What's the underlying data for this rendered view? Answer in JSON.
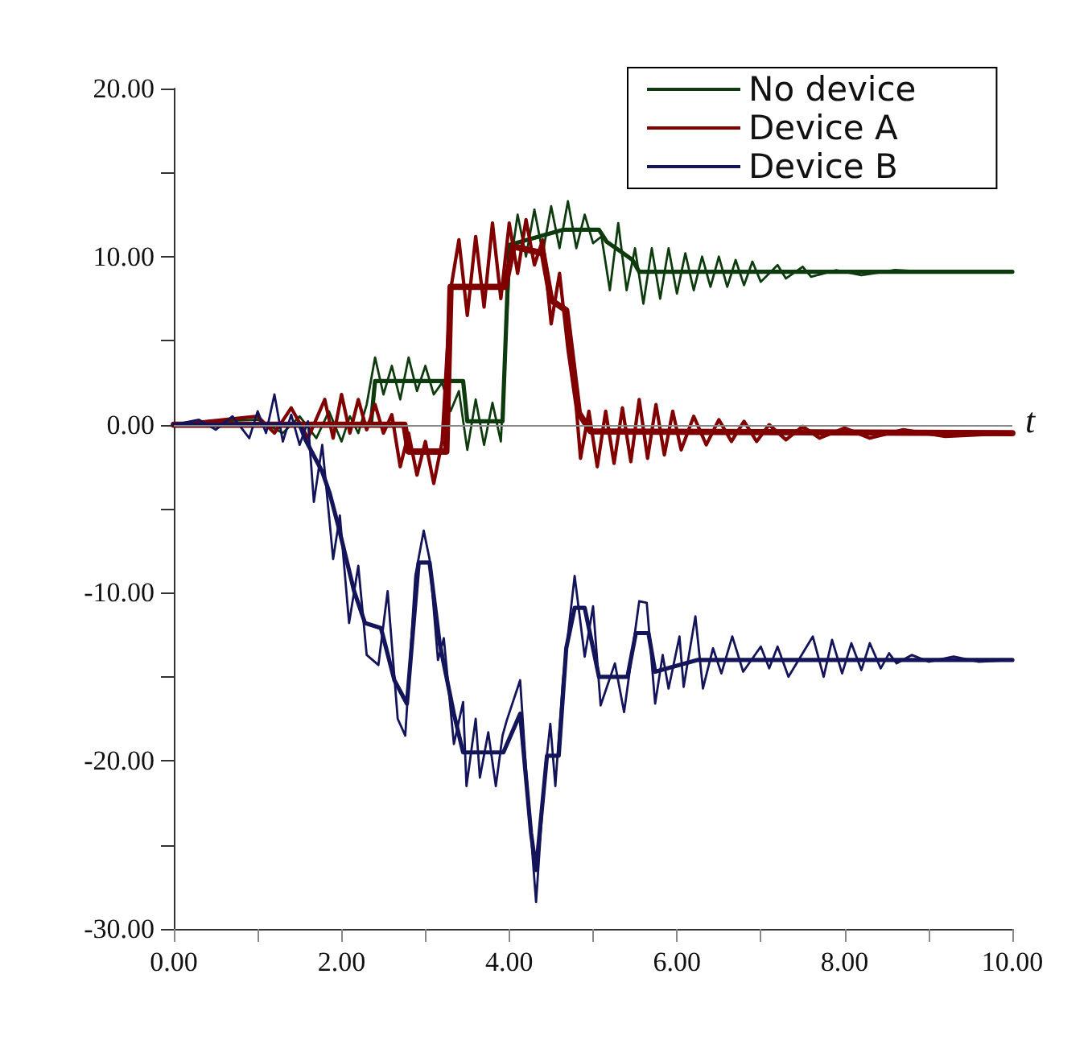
{
  "chart_data": {
    "type": "line",
    "xlabel": "t",
    "xlim": [
      0,
      10
    ],
    "ylim": [
      -30,
      20
    ],
    "xticks": [
      {
        "value": 0,
        "label": "0.00"
      },
      {
        "value": 1,
        "label": null
      },
      {
        "value": 2,
        "label": "2.00"
      },
      {
        "value": 3,
        "label": null
      },
      {
        "value": 4,
        "label": "4.00"
      },
      {
        "value": 5,
        "label": null
      },
      {
        "value": 6,
        "label": "6.00"
      },
      {
        "value": 7,
        "label": null
      },
      {
        "value": 8,
        "label": "8.00"
      },
      {
        "value": 9,
        "label": null
      },
      {
        "value": 10,
        "label": "10.00"
      }
    ],
    "yticks": [
      {
        "value": -30,
        "label": "-30.00"
      },
      {
        "value": -25,
        "label": null
      },
      {
        "value": -20,
        "label": "-20.00"
      },
      {
        "value": -15,
        "label": null
      },
      {
        "value": -10,
        "label": "-10.00"
      },
      {
        "value": -5,
        "label": null
      },
      {
        "value": 0,
        "label": "0.00"
      },
      {
        "value": 5,
        "label": null
      },
      {
        "value": 10,
        "label": "10.00"
      },
      {
        "value": 15,
        "label": null
      },
      {
        "value": 20,
        "label": "20.00"
      }
    ],
    "grid": false,
    "legend": "top right",
    "marker": "none",
    "ref_lines": [
      {
        "axis": "y",
        "value": 0,
        "color": "#888888"
      }
    ],
    "series": [
      {
        "name": "No device",
        "color": "#0d3b0d",
        "x": [
          0,
          0.5,
          1.0,
          1.3,
          1.5,
          1.7,
          1.85,
          2.0,
          2.1,
          2.2,
          2.3,
          2.4,
          2.5,
          2.6,
          2.7,
          2.8,
          2.9,
          3.0,
          3.1,
          3.2,
          3.3,
          3.4,
          3.5,
          3.6,
          3.7,
          3.8,
          3.9,
          4.0,
          4.1,
          4.2,
          4.3,
          4.4,
          4.5,
          4.6,
          4.7,
          4.8,
          4.9,
          5.0,
          5.1,
          5.2,
          5.3,
          5.4,
          5.5,
          5.6,
          5.7,
          5.8,
          5.9,
          6.0,
          6.1,
          6.2,
          6.3,
          6.4,
          6.5,
          6.6,
          6.7,
          6.8,
          6.9,
          7.0,
          7.2,
          7.3,
          7.5,
          7.6,
          7.9,
          8.2,
          8.6,
          9.0,
          10.0
        ],
        "values": [
          0,
          0.2,
          0.3,
          -0.5,
          0.5,
          -0.8,
          0.8,
          -1.0,
          0.5,
          -0.5,
          1.2,
          4.0,
          1.8,
          3.5,
          1.5,
          4.0,
          2.0,
          3.5,
          1.8,
          2.5,
          0.8,
          2.0,
          -1.5,
          1.5,
          -1.2,
          1.3,
          -1.0,
          9.0,
          12.5,
          10.0,
          12.8,
          10.2,
          13.0,
          10.5,
          13.3,
          10.5,
          12.5,
          10.8,
          11.2,
          8.0,
          12.0,
          8.0,
          10.5,
          7.2,
          10.5,
          7.5,
          10.5,
          7.8,
          10.2,
          8.0,
          10.0,
          8.2,
          10.0,
          8.2,
          9.8,
          8.3,
          9.7,
          8.5,
          9.5,
          8.7,
          9.4,
          8.8,
          9.2,
          8.9,
          9.2,
          9.1,
          9.1
        ]
      },
      {
        "color": "#0d3b0d",
        "x": [
          0,
          2.35,
          2.4,
          3.45,
          3.5,
          3.92,
          4.0,
          4.64,
          5.07,
          5.16,
          5.47,
          5.55,
          10.0
        ],
        "values": [
          0,
          0,
          2.6,
          2.6,
          0.2,
          0.2,
          10.7,
          11.6,
          11.6,
          10.9,
          9.8,
          9.1,
          9.1
        ]
      },
      {
        "name": "Device A",
        "color": "#800000",
        "x": [
          0,
          1.0,
          1.2,
          1.4,
          1.6,
          1.8,
          1.9,
          2.0,
          2.1,
          2.2,
          2.3,
          2.4,
          2.5,
          2.6,
          2.7,
          2.8,
          2.9,
          3.0,
          3.1,
          3.2,
          3.3,
          3.4,
          3.5,
          3.6,
          3.7,
          3.8,
          3.9,
          4.0,
          4.1,
          4.2,
          4.3,
          4.4,
          4.5,
          4.6,
          4.7,
          4.8,
          4.85,
          4.95,
          5.05,
          5.15,
          5.25,
          5.35,
          5.45,
          5.55,
          5.65,
          5.75,
          5.85,
          5.95,
          6.05,
          6.2,
          6.35,
          6.5,
          6.65,
          6.8,
          6.95,
          7.1,
          7.3,
          7.5,
          7.7,
          8.0,
          8.3,
          8.7,
          9.2,
          10.0
        ],
        "values": [
          0,
          0.5,
          -0.5,
          1.0,
          -0.8,
          1.5,
          -0.8,
          1.8,
          -0.5,
          1.5,
          -0.3,
          1.2,
          -0.5,
          0.6,
          -2.5,
          -0.5,
          -3.0,
          -1.0,
          -3.5,
          -1.0,
          8.0,
          11.0,
          6.5,
          11.2,
          7.0,
          12.0,
          7.5,
          12.0,
          9.0,
          12.2,
          9.5,
          11.0,
          6.0,
          9.0,
          4.5,
          1.0,
          -2.0,
          0.8,
          -2.5,
          0.8,
          -2.3,
          1.0,
          -2.2,
          1.5,
          -2.0,
          1.2,
          -1.8,
          0.8,
          -1.5,
          0.5,
          -1.2,
          0.3,
          -1.0,
          0.2,
          -1.0,
          0.0,
          -0.9,
          -0.1,
          -0.8,
          -0.2,
          -0.8,
          -0.3,
          -0.7,
          -0.5
        ]
      },
      {
        "color": "#800000",
        "x": [
          0,
          2.75,
          2.8,
          3.25,
          3.3,
          3.95,
          4.05,
          4.4,
          4.5,
          4.68,
          4.83,
          4.97,
          10.0
        ],
        "values": [
          0,
          0,
          -1.6,
          -1.6,
          8.2,
          8.2,
          10.6,
          10.2,
          7.4,
          6.8,
          0.7,
          -0.4,
          -0.5
        ]
      },
      {
        "name": "Device B",
        "color": "#14145a",
        "x": [
          0,
          0.3,
          0.5,
          0.7,
          0.9,
          1.0,
          1.1,
          1.2,
          1.3,
          1.4,
          1.5,
          1.6,
          1.67,
          1.77,
          1.9,
          1.98,
          2.09,
          2.2,
          2.3,
          2.44,
          2.55,
          2.67,
          2.76,
          2.88,
          2.98,
          3.05,
          3.15,
          3.22,
          3.34,
          3.45,
          3.49,
          3.6,
          3.65,
          3.75,
          3.84,
          3.92,
          3.97,
          4.13,
          4.2,
          4.32,
          4.42,
          4.49,
          4.55,
          4.64,
          4.78,
          4.9,
          5.0,
          5.09,
          5.26,
          5.37,
          5.55,
          5.64,
          5.74,
          5.83,
          5.9,
          6.03,
          6.08,
          6.22,
          6.31,
          6.43,
          6.53,
          6.66,
          6.79,
          7.0,
          7.1,
          7.2,
          7.33,
          7.62,
          7.75,
          7.85,
          7.97,
          8.08,
          8.2,
          8.3,
          8.43,
          8.53,
          8.62,
          8.8,
          9.0,
          9.3,
          9.6,
          10.0
        ],
        "values": [
          0,
          0.3,
          -0.3,
          0.5,
          -0.8,
          0.8,
          -0.5,
          1.8,
          -1.0,
          0.6,
          -1.2,
          0.2,
          -4.6,
          -1.2,
          -8.0,
          -5.4,
          -11.8,
          -8.4,
          -13.7,
          -14.3,
          -9.9,
          -17.5,
          -18.5,
          -9.0,
          -6.3,
          -8.0,
          -14.0,
          -12.7,
          -19.0,
          -16.5,
          -21.5,
          -17.5,
          -21.0,
          -18.3,
          -21.5,
          -18.5,
          -17.6,
          -15.2,
          -20.5,
          -28.4,
          -21.0,
          -17.8,
          -21.5,
          -15.2,
          -9.0,
          -13.8,
          -10.8,
          -16.7,
          -14.2,
          -17.1,
          -10.5,
          -10.6,
          -16.6,
          -13.7,
          -15.7,
          -12.6,
          -15.6,
          -11.4,
          -15.7,
          -13.3,
          -14.8,
          -12.6,
          -14.7,
          -13.2,
          -14.5,
          -13.2,
          -15.0,
          -12.6,
          -15.0,
          -12.8,
          -14.8,
          -13.0,
          -14.6,
          -13.0,
          -14.5,
          -13.6,
          -14.2,
          -13.7,
          -14.1,
          -13.8,
          -14.1,
          -14.0
        ]
      },
      {
        "color": "#14145a",
        "x": [
          0,
          1.5,
          1.57,
          1.77,
          1.86,
          1.96,
          2.15,
          2.28,
          2.47,
          2.63,
          2.78,
          2.92,
          3.05,
          3.17,
          3.34,
          3.45,
          3.93,
          4.13,
          4.26,
          4.32,
          4.45,
          4.59,
          4.68,
          4.78,
          4.9,
          5.07,
          5.41,
          5.51,
          5.66,
          5.74,
          6.24,
          10.0
        ],
        "values": [
          0,
          0,
          -0.9,
          -2.8,
          -4.1,
          -6.0,
          -9.9,
          -11.8,
          -12.1,
          -15.2,
          -16.6,
          -8.2,
          -8.2,
          -13.0,
          -17.2,
          -19.5,
          -19.5,
          -17.2,
          -24.3,
          -26.5,
          -19.7,
          -19.7,
          -13.3,
          -10.9,
          -10.9,
          -15.0,
          -15.0,
          -12.4,
          -12.4,
          -14.7,
          -14.0,
          -14.0
        ]
      }
    ]
  }
}
